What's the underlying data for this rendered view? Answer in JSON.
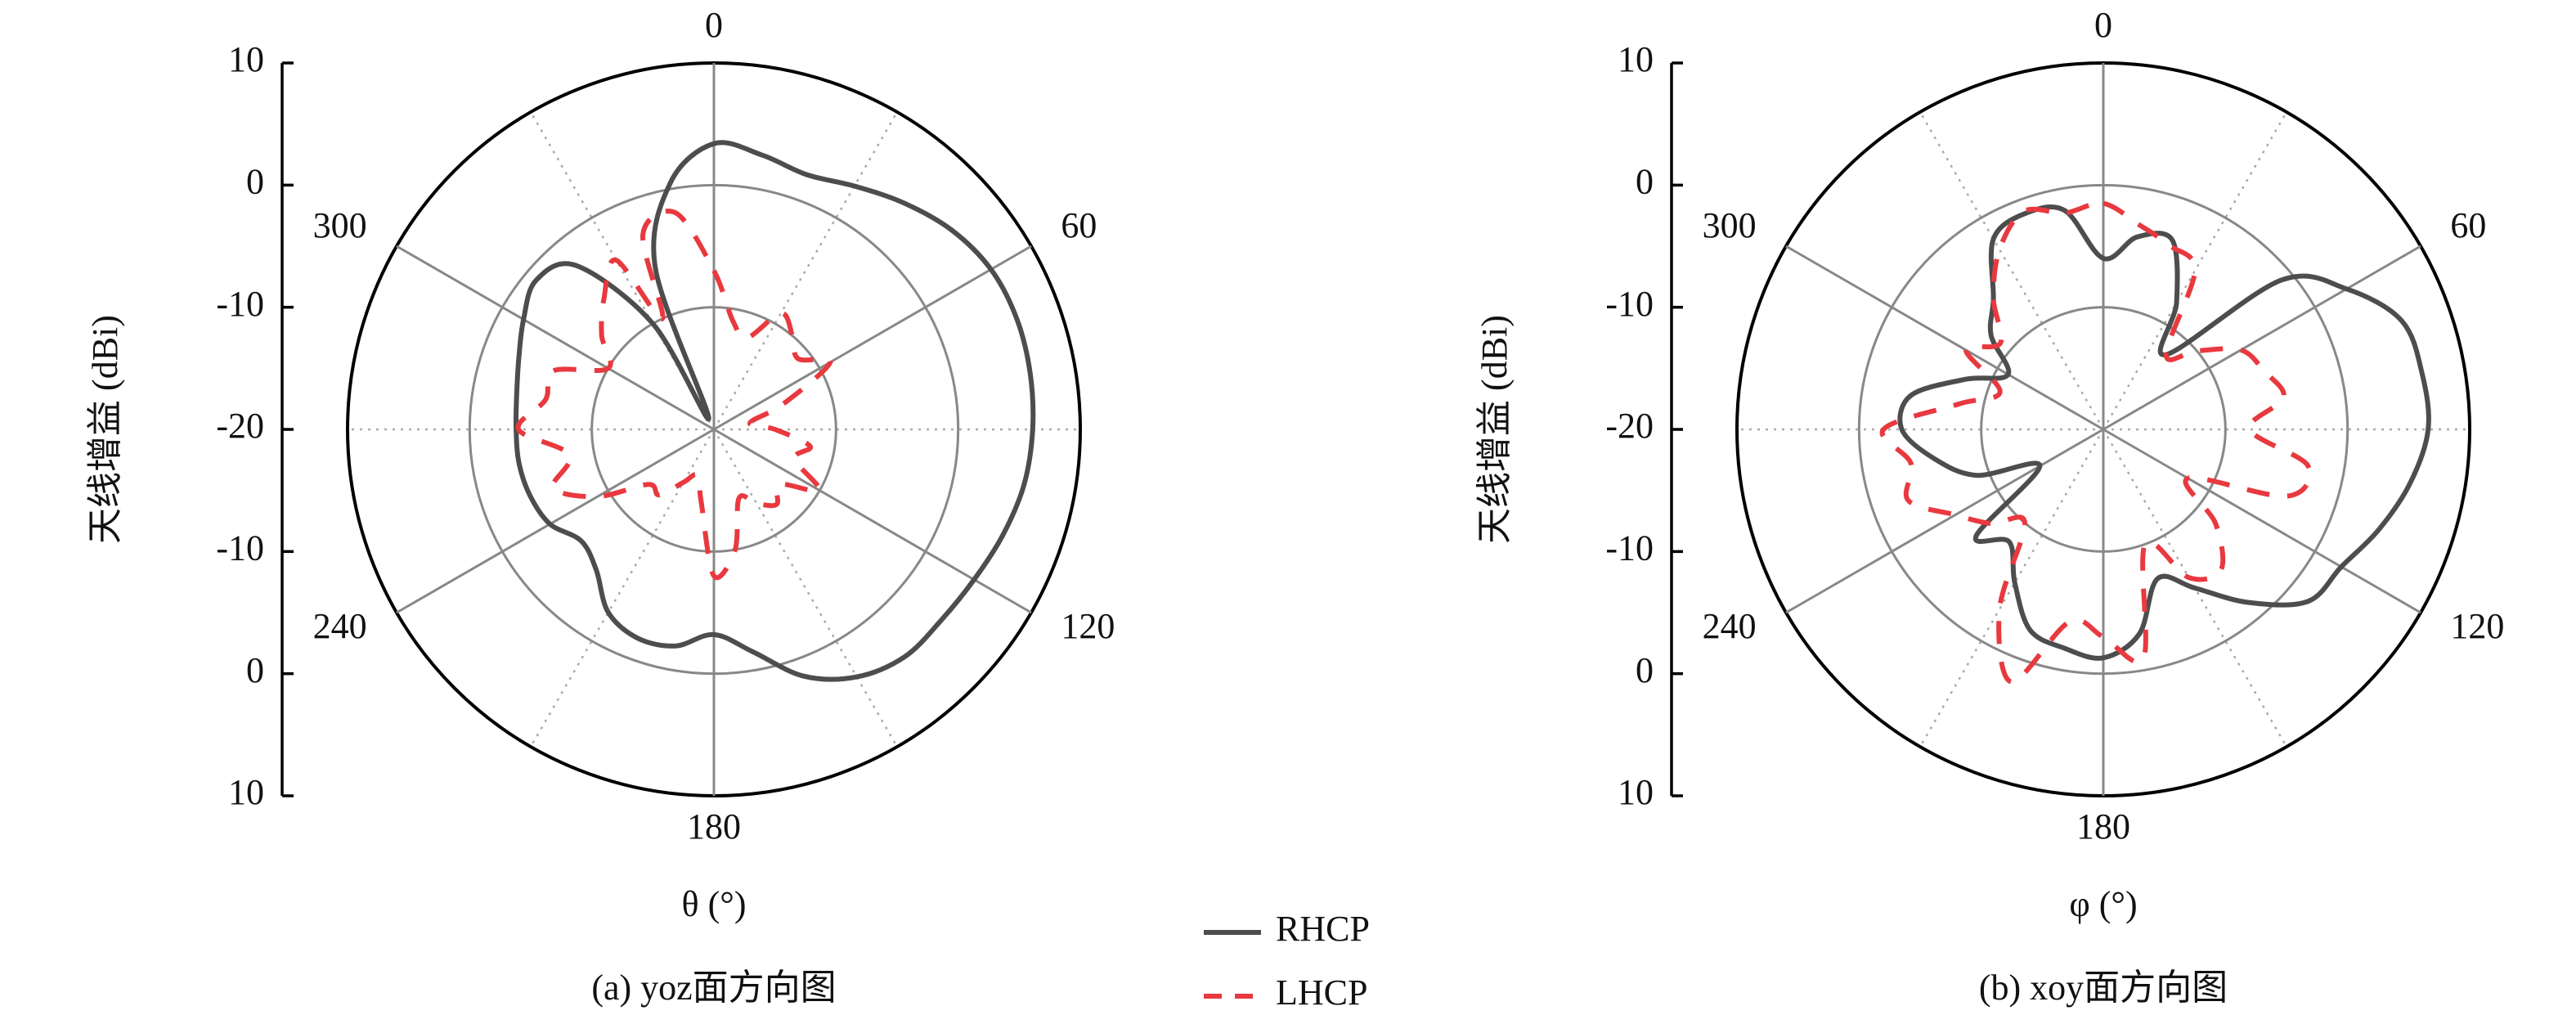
{
  "chart_data": [
    {
      "type": "polar",
      "ylabel": "天线增益 (dBi)",
      "xlabel": "θ (°)",
      "caption": "(a) yoz面方向图",
      "rlim": [
        -20,
        10
      ],
      "rticks": [
        -20,
        -10,
        0,
        10
      ],
      "thetaticks": [
        0,
        60,
        120,
        180,
        240,
        300
      ],
      "x": [
        0,
        10,
        20,
        30,
        40,
        50,
        60,
        70,
        80,
        90,
        100,
        110,
        120,
        130,
        140,
        150,
        160,
        170,
        180,
        190,
        200,
        210,
        220,
        230,
        240,
        250,
        260,
        270,
        280,
        290,
        300,
        310,
        320,
        330,
        335,
        340,
        350
      ],
      "series": [
        {
          "name": "RHCP",
          "color": "#4d4d4d",
          "dashed": false,
          "values": [
            3.4,
            2.8,
            2.2,
            3.0,
            4.2,
            5.4,
            6.2,
            6.4,
            6.3,
            6.1,
            5.8,
            5.2,
            4.6,
            4.3,
            4.3,
            3.4,
            1.5,
            -1.5,
            -3.2,
            -2.0,
            -1.8,
            -2.7,
            -5,
            -5.8,
            -4.5,
            -4,
            -3.8,
            -3.8,
            -3.6,
            -3,
            -2.0,
            -1.0,
            -2.5,
            -10,
            -19,
            -6,
            0.5
          ]
        },
        {
          "name": "LHCP",
          "color": "#e8393f",
          "dashed": true,
          "values": [
            -7,
            -11,
            -12,
            -9,
            -10,
            -11,
            -9,
            -14,
            -17,
            -15,
            -12,
            -13,
            -10,
            -13,
            -12,
            -13,
            -14,
            -10,
            -8,
            -14,
            -16,
            -15,
            -13,
            -13,
            -9,
            -6,
            -8,
            -4,
            -6,
            -6,
            -10,
            -8,
            -6,
            -4,
            -10,
            -3,
            -2
          ]
        }
      ]
    },
    {
      "type": "polar",
      "ylabel": "天线增益 (dBi)",
      "xlabel": "φ (°)",
      "caption": "(b) xoy面方向图",
      "rlim": [
        -20,
        10
      ],
      "rticks": [
        -20,
        -10,
        0,
        10
      ],
      "thetaticks": [
        0,
        60,
        120,
        180,
        240,
        300
      ],
      "x": [
        0,
        10,
        20,
        30,
        40,
        50,
        60,
        70,
        80,
        90,
        100,
        110,
        120,
        130,
        140,
        150,
        160,
        170,
        180,
        190,
        200,
        210,
        220,
        230,
        240,
        250,
        260,
        270,
        280,
        290,
        300,
        310,
        320,
        330,
        340,
        350
      ],
      "series": [
        {
          "name": "RHCP",
          "color": "#4d4d4d",
          "dashed": false,
          "values": [
            -6,
            -4,
            -3.5,
            -8,
            -12,
            -1,
            3,
            6,
            6.5,
            6.6,
            5.5,
            4,
            2.5,
            1.9,
            -1.5,
            -5,
            -7,
            -3,
            -1.3,
            -1.8,
            -2.5,
            -5.5,
            -8,
            -6.4,
            -14,
            -9,
            -6,
            -3.5,
            -4,
            -8,
            -11,
            -8,
            -6,
            -2,
            -1.2,
            -1.8
          ]
        },
        {
          "name": "LHCP",
          "color": "#e8393f",
          "dashed": true,
          "values": [
            -1.5,
            -3,
            -4,
            -5,
            -12,
            -10,
            -7,
            -6,
            -5,
            -8,
            -3,
            -4,
            -12,
            -8,
            -5,
            -6,
            -10,
            -1,
            -3,
            -4,
            2,
            -3,
            -10,
            -8,
            -6,
            -3,
            -4,
            -2,
            -8,
            -11,
            -7,
            -9,
            -6,
            -3,
            -1,
            -2
          ]
        }
      ]
    }
  ]
}
